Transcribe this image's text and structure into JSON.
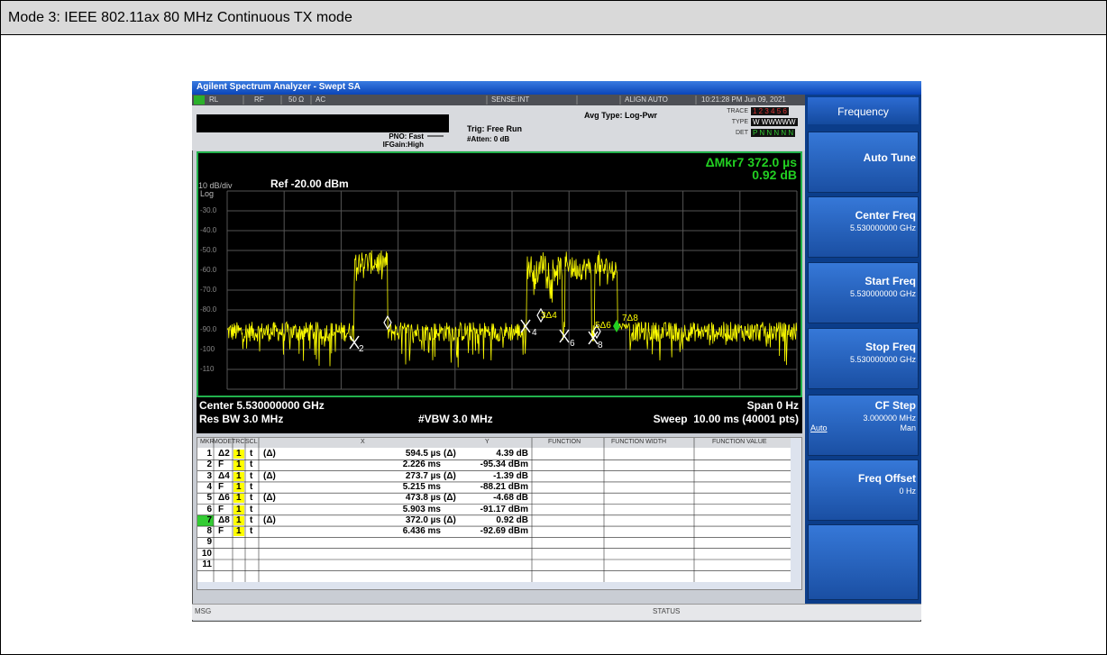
{
  "header": {
    "title": "Mode 3: IEEE 802.11ax 80 MHz Continuous TX mode"
  },
  "screenshot": {
    "window_title": "Agilent Spectrum Analyzer - Swept SA",
    "status_bar": [
      "RL",
      "RF",
      "50 Ω",
      "AC",
      "SENSE:INT",
      "ALIGN AUTO",
      "10:21:28 PM Jun 09, 2021"
    ],
    "settings": {
      "pno": "PNO: Fast",
      "ifgain": "IFGain:High",
      "trig": "Trig: Free Run",
      "atten": "#Atten: 0 dB",
      "avg_type": "Avg Type: Log-Pwr",
      "trace_label": "TRACE",
      "trace_value": "1 2 3 4 5 6",
      "type_label": "TYPE",
      "type_value": "W WWWWW",
      "det_label": "DET",
      "det_value": "P N N N N N"
    },
    "display": {
      "marker_readout": "ΔMkr7 372.0 µs",
      "marker_value": "0.92 dB",
      "scale": "10 dB/div",
      "scale_type": "Log",
      "ref": "Ref -20.00 dBm",
      "y_labels": [
        "-30.0",
        "-40.0",
        "-50.0",
        "-60.0",
        "-70.0",
        "-80.0",
        "-90.0",
        "-100",
        "-110"
      ],
      "markers": [
        "2",
        "3Δ4",
        "4",
        "5Δ6",
        "6",
        "7Δ8",
        "8"
      ]
    },
    "footer": {
      "center": "Center 5.530000000 GHz",
      "span": "Span 0 Hz",
      "rbw": "Res BW 3.0 MHz",
      "vbw": "#VBW 3.0 MHz",
      "sweep": "Sweep  10.00 ms (40001 pts)"
    },
    "marker_table": {
      "columns": [
        "MKR",
        "MODE",
        "TRC",
        "SCL",
        "X",
        "Y",
        "FUNCTION",
        "FUNCTION WIDTH",
        "FUNCTION VALUE"
      ],
      "rows": [
        {
          "mkr": "1",
          "mode": "Δ2",
          "trc": "1",
          "scl": "t",
          "xref": "(Δ)",
          "x": "594.5 µs",
          "yref": "(Δ)",
          "y": "4.39 dB"
        },
        {
          "mkr": "2",
          "mode": "F",
          "trc": "1",
          "scl": "t",
          "x": "2.226 ms",
          "y": "-95.34 dBm"
        },
        {
          "mkr": "3",
          "mode": "Δ4",
          "trc": "1",
          "scl": "t",
          "xref": "(Δ)",
          "x": "273.7 µs",
          "yref": "(Δ)",
          "y": "-1.39 dB"
        },
        {
          "mkr": "4",
          "mode": "F",
          "trc": "1",
          "scl": "t",
          "x": "5.215 ms",
          "y": "-88.21 dBm"
        },
        {
          "mkr": "5",
          "mode": "Δ6",
          "trc": "1",
          "scl": "t",
          "xref": "(Δ)",
          "x": "473.8 µs",
          "yref": "(Δ)",
          "y": "-4.68 dB"
        },
        {
          "mkr": "6",
          "mode": "F",
          "trc": "1",
          "scl": "t",
          "x": "5.903 ms",
          "y": "-91.17 dBm"
        },
        {
          "mkr": "7",
          "mode": "Δ8",
          "trc": "1",
          "scl": "t",
          "xref": "(Δ)",
          "x": "372.0 µs",
          "yref": "(Δ)",
          "y": "0.92 dB"
        },
        {
          "mkr": "8",
          "mode": "F",
          "trc": "1",
          "scl": "t",
          "x": "6.436 ms",
          "y": "-92.69 dBm"
        },
        {
          "mkr": "9"
        },
        {
          "mkr": "10"
        },
        {
          "mkr": "11"
        }
      ]
    },
    "msg": "MSG",
    "status": "STATUS",
    "softkeys": {
      "menu": "Frequency",
      "keys": [
        {
          "label": "Auto Tune"
        },
        {
          "label": "Center Freq",
          "value": "5.530000000 GHz"
        },
        {
          "label": "Start Freq",
          "value": "5.530000000 GHz"
        },
        {
          "label": "Stop Freq",
          "value": "5.530000000 GHz"
        },
        {
          "label": "CF Step",
          "value": "3.000000 MHz",
          "options": [
            "Auto",
            "Man"
          ]
        },
        {
          "label": "Freq Offset",
          "value": "0 Hz"
        }
      ]
    }
  }
}
